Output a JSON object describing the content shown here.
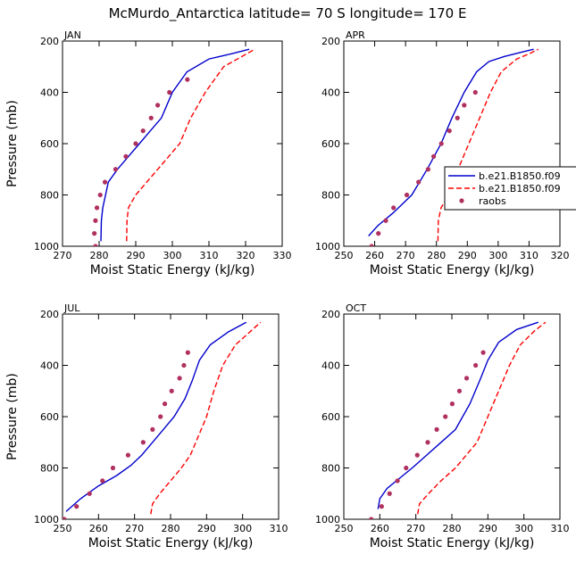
{
  "figure": {
    "title": "McMurdo_Antarctica  latitude= 70 S longitude= 170 E"
  },
  "colors": {
    "model": "#0000cc",
    "control": "#ff0000",
    "obs": "#b03060"
  },
  "chart_data": [
    {
      "type": "line",
      "panel": "JAN",
      "title": "JAN",
      "xlabel": "Moist Static Energy (kJ/kg)",
      "ylabel": "Pressure (mb)",
      "xlim": [
        270,
        330
      ],
      "ylim": [
        1000,
        200
      ],
      "xticks": [
        270,
        280,
        290,
        300,
        310,
        320,
        330
      ],
      "yticks": [
        200,
        400,
        600,
        800,
        1000
      ],
      "series": [
        {
          "name": "b.e21.B1850.f09",
          "style": "solid",
          "color": "#0000cc",
          "x": [
            280.5,
            280.6,
            281.0,
            282.5,
            285.0,
            288.0,
            291.0,
            294.0,
            297.0,
            300.0,
            304.0,
            310.0,
            316.0,
            321.0
          ],
          "y": [
            980,
            900,
            850,
            750,
            700,
            650,
            600,
            550,
            500,
            400,
            320,
            270,
            250,
            232
          ]
        },
        {
          "name": "b.e21.B1850.f09",
          "style": "dashed",
          "color": "#ff0000",
          "x": [
            287.5,
            287.6,
            288.0,
            290.0,
            293.0,
            296.0,
            299.0,
            302.0,
            305.0,
            309.0,
            314.0,
            319.0,
            322.5
          ],
          "y": [
            980,
            900,
            850,
            800,
            750,
            700,
            650,
            600,
            500,
            400,
            300,
            260,
            232
          ]
        },
        {
          "name": "raobs",
          "style": "points",
          "color": "#b03060",
          "x": [
            279.0,
            278.7,
            279.0,
            279.4,
            280.3,
            281.6,
            284.5,
            287.3,
            290.0,
            292.0,
            294.2,
            296.0,
            299.2,
            304.1
          ],
          "y": [
            1000,
            950,
            900,
            850,
            800,
            750,
            700,
            650,
            600,
            550,
            500,
            450,
            400,
            350
          ]
        }
      ]
    },
    {
      "type": "line",
      "panel": "APR",
      "title": "APR",
      "xlabel": "Moist Static Energy (kJ/kg)",
      "ylabel": "",
      "xlim": [
        250,
        320
      ],
      "ylim": [
        1000,
        200
      ],
      "xticks": [
        250,
        260,
        270,
        280,
        290,
        300,
        310,
        320
      ],
      "yticks": [
        200,
        400,
        600,
        800,
        1000
      ],
      "legend": {
        "entries": [
          "b.e21.B1850.f09",
          "b.e21.B1850.f09",
          "raobs"
        ],
        "position": "right, clipped at panel edge"
      },
      "series": [
        {
          "name": "b.e21.B1850.f09",
          "style": "solid",
          "color": "#0000cc",
          "x": [
            258.0,
            261.0,
            266.0,
            272.0,
            277.0,
            281.5,
            285.0,
            289.0,
            293.0,
            297.0,
            302.0,
            307.0,
            311.5
          ],
          "y": [
            960,
            920,
            870,
            800,
            700,
            600,
            500,
            400,
            320,
            280,
            260,
            245,
            232
          ]
        },
        {
          "name": "b.e21.B1850.f09",
          "style": "dashed",
          "color": "#ff0000",
          "x": [
            280.5,
            280.6,
            281.5,
            284.0,
            287.0,
            290.5,
            294.0,
            297.5,
            301.0,
            306.0,
            310.0,
            313.0
          ],
          "y": [
            980,
            900,
            850,
            800,
            700,
            600,
            500,
            400,
            320,
            270,
            250,
            232
          ]
        },
        {
          "name": "raobs",
          "style": "points",
          "color": "#b03060",
          "x": [
            259.0,
            261.2,
            263.6,
            266.1,
            270.4,
            274.2,
            277.3,
            279.1,
            281.6,
            284.2,
            286.8,
            289.0,
            292.6
          ],
          "y": [
            1000,
            950,
            900,
            850,
            800,
            750,
            700,
            650,
            600,
            550,
            500,
            450,
            400
          ]
        }
      ]
    },
    {
      "type": "line",
      "panel": "JUL",
      "title": "JUL",
      "xlabel": "Moist Static Energy (kJ/kg)",
      "ylabel": "Pressure (mb)",
      "xlim": [
        250,
        310
      ],
      "ylim": [
        1000,
        200
      ],
      "xticks": [
        250,
        260,
        270,
        280,
        290,
        300,
        310
      ],
      "yticks": [
        200,
        400,
        600,
        800,
        1000
      ],
      "series": [
        {
          "name": "b.e21.B1850.f09",
          "style": "solid",
          "color": "#0000cc",
          "x": [
            251.0,
            255.0,
            260.0,
            265.0,
            269.0,
            272.0,
            275.0,
            278.0,
            281.0,
            284.0,
            286.0,
            288.0,
            291.0,
            296.0,
            301.0
          ],
          "y": [
            970,
            920,
            870,
            830,
            790,
            750,
            700,
            650,
            600,
            530,
            460,
            380,
            320,
            270,
            232
          ]
        },
        {
          "name": "b.e21.B1850.f09",
          "style": "dashed",
          "color": "#ff0000",
          "x": [
            274.5,
            275.0,
            277.0,
            280.0,
            283.0,
            285.5,
            287.0,
            288.5,
            290.0,
            292.0,
            294.5,
            298.0,
            302.0,
            305.0
          ],
          "y": [
            980,
            940,
            900,
            850,
            800,
            750,
            700,
            650,
            600,
            500,
            400,
            320,
            270,
            232
          ]
        },
        {
          "name": "raobs",
          "style": "points",
          "color": "#b03060",
          "x": [
            250.5,
            253.9,
            257.5,
            261.1,
            264.0,
            268.2,
            272.4,
            275.0,
            277.2,
            278.4,
            280.3,
            282.5,
            283.7,
            284.8
          ],
          "y": [
            1000,
            950,
            900,
            850,
            800,
            750,
            700,
            650,
            600,
            550,
            500,
            450,
            400,
            350
          ]
        }
      ]
    },
    {
      "type": "line",
      "panel": "OCT",
      "title": "OCT",
      "xlabel": "Moist Static Energy (kJ/kg)",
      "ylabel": "",
      "xlim": [
        250,
        310
      ],
      "ylim": [
        1000,
        200
      ],
      "xticks": [
        250,
        260,
        270,
        280,
        290,
        300,
        310
      ],
      "yticks": [
        200,
        400,
        600,
        800,
        1000
      ],
      "series": [
        {
          "name": "b.e21.B1850.f09",
          "style": "solid",
          "color": "#0000cc",
          "x": [
            259.5,
            260.0,
            262.0,
            265.5,
            269.0,
            273.0,
            277.0,
            281.0,
            285.0,
            288.0,
            290.0,
            293.0,
            298.0,
            304.0
          ],
          "y": [
            960,
            920,
            880,
            840,
            800,
            750,
            700,
            650,
            550,
            450,
            380,
            310,
            260,
            232
          ]
        },
        {
          "name": "b.e21.B1850.f09",
          "style": "dashed",
          "color": "#ff0000",
          "x": [
            270.5,
            271.0,
            273.5,
            277.0,
            281.0,
            284.0,
            287.0,
            290.0,
            293.0,
            296.0,
            299.0,
            303.0,
            306.0
          ],
          "y": [
            980,
            940,
            900,
            850,
            800,
            750,
            700,
            600,
            500,
            400,
            320,
            265,
            232
          ]
        },
        {
          "name": "raobs",
          "style": "points",
          "color": "#b03060",
          "x": [
            257.6,
            260.5,
            262.7,
            264.9,
            267.3,
            270.4,
            273.3,
            275.8,
            278.2,
            280.1,
            282.1,
            284.1,
            286.6,
            288.7
          ],
          "y": [
            1000,
            950,
            900,
            850,
            800,
            750,
            700,
            650,
            600,
            550,
            500,
            450,
            400,
            350
          ]
        }
      ]
    }
  ]
}
